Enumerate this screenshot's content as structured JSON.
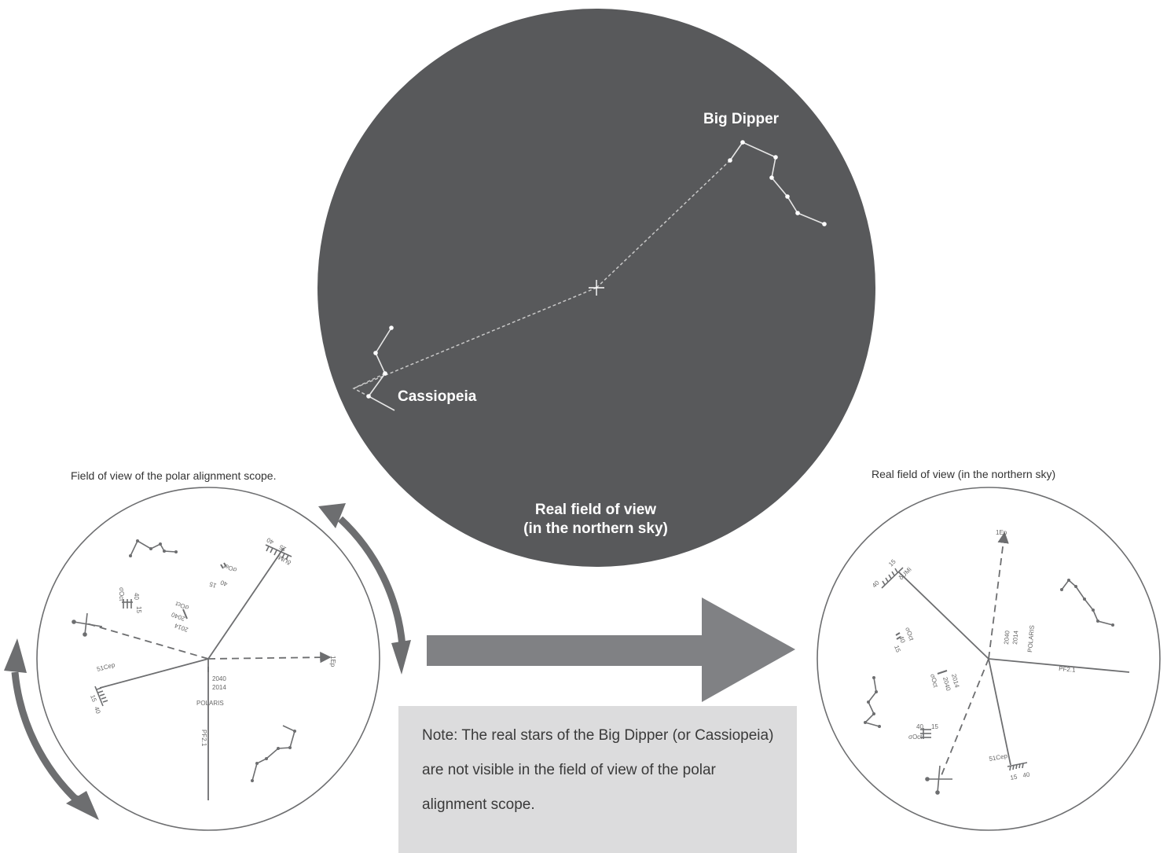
{
  "colors": {
    "sky": "#58595b",
    "star": "#ffffff",
    "reticle_line": "#6d6e70",
    "arrow": "#808184",
    "note_bg": "#dcdcdd"
  },
  "sky": {
    "big_dipper_label": "Big Dipper",
    "cassiopeia_label": "Cassiopeia",
    "caption_line1": "Real field of view",
    "caption_line2": "(in the northern sky)"
  },
  "left_scope": {
    "caption": "Field of view of the polar alignment scope.",
    "labels": {
      "polaris": "POLARIS",
      "year1": "2040",
      "year2": "2014",
      "pf": "PF2.1",
      "fifteen": "15",
      "forty": "40",
      "sigma_oct": "σOct",
      "cep": "51Cep",
      "umi": "δUMi",
      "ep": "1Ep"
    }
  },
  "right_scope": {
    "caption": "Real field of view (in the northern sky)",
    "labels": {
      "polaris": "POLARIS",
      "year1": "2040",
      "year2": "2014",
      "pf": "PF2.1",
      "fifteen": "15",
      "forty": "40",
      "sigma_oct": "σOct",
      "cep": "51Cep",
      "umi": "δUMi",
      "ep": "1Ep"
    }
  },
  "note": {
    "text": "Note: The real stars of the Big Dipper (or Cassiopeia) are not visible in the field of view of the polar alignment scope."
  }
}
